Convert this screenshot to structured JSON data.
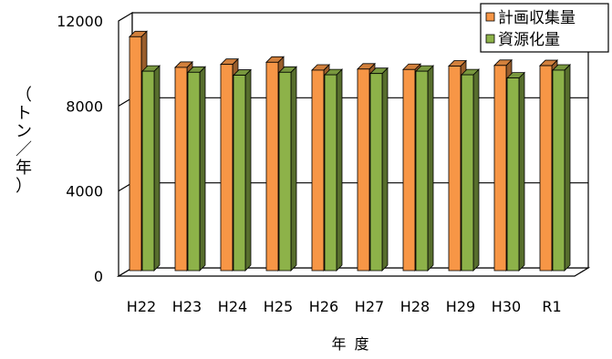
{
  "chart_data": {
    "type": "bar",
    "title": "",
    "xlabel": "年 度",
    "ylabel": "（トン／年）",
    "categories": [
      "H22",
      "H23",
      "H24",
      "H25",
      "H26",
      "H27",
      "H28",
      "H29",
      "H30",
      "R1"
    ],
    "ylim": [
      0,
      12000
    ],
    "yticks": [
      0,
      4000,
      8000,
      12000
    ],
    "grid": true,
    "legend_position": "top-right",
    "series": [
      {
        "name": "計画収集量",
        "color": "#F79646",
        "values": [
          11000,
          9560,
          9700,
          9800,
          9430,
          9480,
          9460,
          9620,
          9650,
          9640
        ]
      },
      {
        "name": "資源化量",
        "color": "#8DB249",
        "values": [
          9380,
          9330,
          9190,
          9330,
          9210,
          9270,
          9380,
          9210,
          9060,
          9430
        ]
      }
    ]
  }
}
